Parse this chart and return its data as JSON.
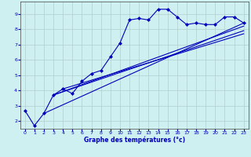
{
  "xlabel": "Graphe des températures (°c)",
  "bg_color": "#cff0f0",
  "grid_color": "#b0d0d0",
  "line_color": "#0000bb",
  "xlim": [
    -0.5,
    23.5
  ],
  "ylim": [
    1.5,
    9.8
  ],
  "yticks": [
    2,
    3,
    4,
    5,
    6,
    7,
    8,
    9
  ],
  "xticks": [
    0,
    1,
    2,
    3,
    4,
    5,
    6,
    7,
    8,
    9,
    10,
    11,
    12,
    13,
    14,
    15,
    16,
    17,
    18,
    19,
    20,
    21,
    22,
    23
  ],
  "main_x": [
    0,
    1,
    2,
    3,
    4,
    5,
    6,
    7,
    8,
    9,
    10,
    11,
    12,
    13,
    14,
    15,
    16,
    17,
    18,
    19,
    20,
    21,
    22,
    23
  ],
  "main_y": [
    2.7,
    1.7,
    2.5,
    3.7,
    4.1,
    3.8,
    4.6,
    5.1,
    5.3,
    6.2,
    7.1,
    8.6,
    8.7,
    8.6,
    9.3,
    9.3,
    8.8,
    8.3,
    8.4,
    8.3,
    8.3,
    8.8,
    8.8,
    8.4
  ],
  "trend1_x": [
    2,
    23
  ],
  "trend1_y": [
    2.5,
    8.4
  ],
  "trend2_x": [
    3,
    23
  ],
  "trend2_y": [
    3.7,
    8.2
  ],
  "trend3_x": [
    3,
    23
  ],
  "trend3_y": [
    3.7,
    7.9
  ],
  "trend4_x": [
    4,
    23
  ],
  "trend4_y": [
    4.1,
    7.7
  ]
}
